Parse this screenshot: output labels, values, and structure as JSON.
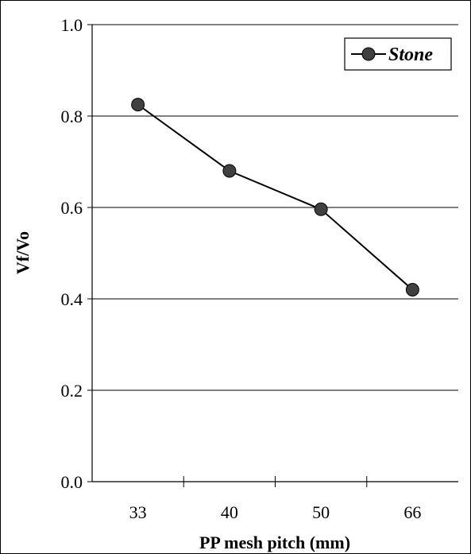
{
  "chart_data": {
    "type": "line",
    "categories": [
      "33",
      "40",
      "50",
      "66"
    ],
    "series": [
      {
        "name": "Stone",
        "values": [
          0.825,
          0.68,
          0.596,
          0.42
        ]
      }
    ],
    "xlabel": "PP mesh pitch (mm)",
    "ylabel": "Vf/Vo",
    "ylim": [
      0,
      1.0
    ],
    "yticks": [
      "0.0",
      "0.2",
      "0.4",
      "0.6",
      "0.8",
      "1.0"
    ],
    "grid": true,
    "legend": "top-right",
    "colors": {
      "line": "#000000",
      "marker": "#404040",
      "grid": "#000000",
      "axis": "#000000"
    }
  }
}
